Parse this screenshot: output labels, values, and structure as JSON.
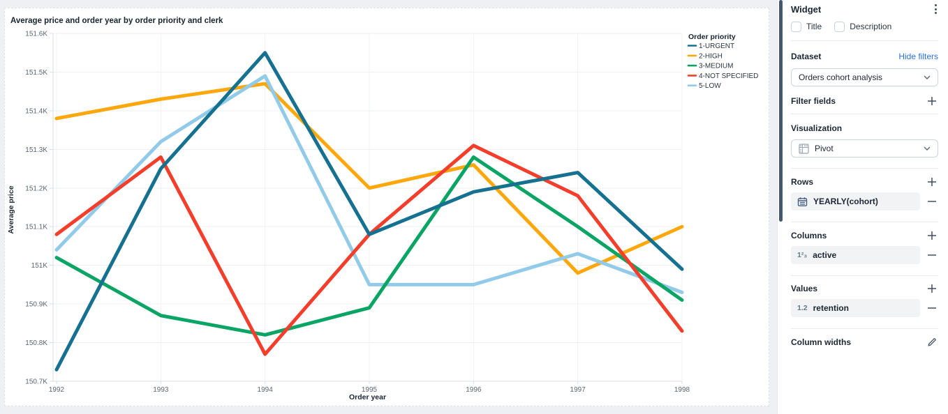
{
  "chart": {
    "title": "Average price and order year by order priority and clerk"
  },
  "chart_data": {
    "type": "line",
    "title": "Average price and order year by order priority and clerk",
    "xlabel": "Order year",
    "ylabel": "Average price",
    "x": [
      1992,
      1993,
      1994,
      1995,
      1996,
      1997,
      1998
    ],
    "ylim": [
      150.7,
      151.6
    ],
    "y_unit": "K",
    "grid": true,
    "legend_position": "right",
    "legend_title": "Order priority",
    "yticks": [
      {
        "label": "151.6K",
        "value": 151.6
      },
      {
        "label": "151.5K",
        "value": 151.5
      },
      {
        "label": "151.4K",
        "value": 151.4
      },
      {
        "label": "151.3K",
        "value": 151.3
      },
      {
        "label": "151.2K",
        "value": 151.2
      },
      {
        "label": "151.1K",
        "value": 151.1
      },
      {
        "label": "151K",
        "value": 151.0
      },
      {
        "label": "150.9K",
        "value": 150.9
      },
      {
        "label": "150.8K",
        "value": 150.8
      },
      {
        "label": "150.7K",
        "value": 150.7
      }
    ],
    "series": [
      {
        "name": "1-URGENT",
        "color": "#15718f",
        "values": [
          150.73,
          151.25,
          151.55,
          151.08,
          151.19,
          151.24,
          150.99
        ]
      },
      {
        "name": "2-HIGH",
        "color": "#fca80d",
        "values": [
          151.38,
          151.43,
          151.47,
          151.2,
          151.26,
          150.98,
          151.1
        ]
      },
      {
        "name": "3-MEDIUM",
        "color": "#0aa564",
        "values": [
          151.02,
          150.87,
          150.82,
          150.89,
          151.28,
          151.1,
          150.91
        ]
      },
      {
        "name": "4-NOT SPECIFIED",
        "color": "#f43e2c",
        "values": [
          151.08,
          151.28,
          150.77,
          151.08,
          151.31,
          151.18,
          150.83
        ]
      },
      {
        "name": "5-LOW",
        "color": "#92cbe9",
        "values": [
          151.04,
          151.32,
          151.49,
          150.95,
          150.95,
          151.03,
          150.93
        ]
      }
    ]
  },
  "panel": {
    "title": "Widget",
    "checkboxes": {
      "title": "Title",
      "description": "Description"
    },
    "dataset": {
      "heading": "Dataset",
      "link": "Hide filters",
      "selected": "Orders cohort analysis"
    },
    "filter_fields": {
      "heading": "Filter fields"
    },
    "visualization": {
      "heading": "Visualization",
      "selected": "Pivot"
    },
    "rows": {
      "heading": "Rows",
      "item": "YEARLY(cohort)"
    },
    "columns": {
      "heading": "Columns",
      "item": "active",
      "icon_text": "1²₃"
    },
    "values": {
      "heading": "Values",
      "item": "retention",
      "icon_text": "1.2"
    },
    "column_widths": {
      "heading": "Column widths"
    }
  },
  "colors": {
    "accent_link": "#2970e8",
    "scrollbar": "#46586c",
    "panel_border": "#e4e8ec",
    "page_bg": "#eef0f3"
  }
}
